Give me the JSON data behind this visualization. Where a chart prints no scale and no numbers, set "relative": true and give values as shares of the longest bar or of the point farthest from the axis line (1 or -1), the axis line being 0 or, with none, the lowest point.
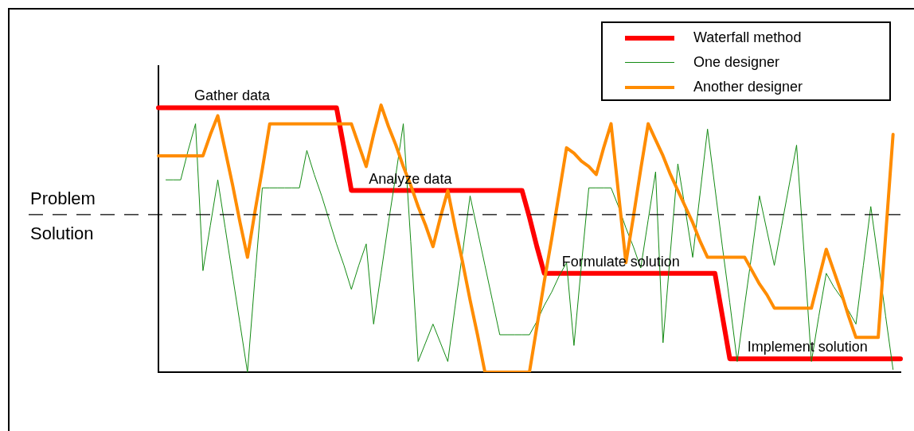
{
  "chart_data": {
    "type": "line",
    "relative": true,
    "tick_labels": false,
    "grid": false,
    "legend": "top right",
    "marker": "none",
    "line_style": "solid",
    "categories": [
      null,
      null,
      null,
      null,
      null,
      null,
      null,
      null,
      null,
      null,
      null,
      null,
      null,
      null,
      null,
      null,
      null,
      null,
      null,
      null,
      null,
      null,
      null,
      null,
      null,
      null,
      null,
      null,
      null,
      null,
      null,
      null,
      null,
      null,
      null,
      null,
      null,
      null,
      null,
      null,
      null,
      null,
      null,
      null,
      null,
      null,
      null,
      null,
      null,
      null,
      null,
      null,
      null,
      null,
      null,
      null,
      null,
      null,
      null,
      null,
      null,
      null,
      null,
      null,
      null,
      null,
      null,
      null,
      null,
      null,
      null,
      null,
      null,
      null,
      null,
      null,
      null,
      null,
      null,
      null,
      null,
      null,
      null,
      null,
      null,
      null,
      null,
      null,
      null,
      null,
      null,
      null,
      null,
      null,
      null,
      null,
      null,
      null,
      null,
      null,
      null
    ],
    "series": [
      {
        "name": "Waterfall method",
        "color": "#ff0000",
        "values": [
          0.99,
          0.99,
          0.99,
          0.99,
          0.99,
          0.99,
          0.99,
          0.99,
          0.99,
          0.99,
          0.99,
          0.99,
          0.99,
          0.99,
          0.99,
          0.99,
          0.99,
          0.99,
          0.99,
          0.99,
          0.99,
          0.99,
          0.99,
          0.99,
          0.99,
          0.84,
          0.68,
          0.68,
          0.68,
          0.68,
          0.68,
          0.68,
          0.68,
          0.68,
          0.68,
          0.68,
          0.68,
          0.68,
          0.68,
          0.68,
          0.68,
          0.68,
          0.68,
          0.68,
          0.68,
          0.68,
          0.68,
          0.68,
          0.68,
          0.68,
          0.58,
          0.47,
          0.37,
          0.37,
          0.37,
          0.37,
          0.37,
          0.37,
          0.37,
          0.37,
          0.37,
          0.37,
          0.37,
          0.37,
          0.37,
          0.37,
          0.37,
          0.37,
          0.37,
          0.37,
          0.37,
          0.37,
          0.37,
          0.37,
          0.37,
          0.37,
          0.21,
          0.05,
          0.05,
          0.05,
          0.05,
          0.05,
          0.05,
          0.05,
          0.05,
          0.05,
          0.05,
          0.05,
          0.05,
          0.05,
          0.05,
          0.05,
          0.05,
          0.05,
          0.05,
          0.05,
          0.05,
          0.05,
          0.05,
          0.05,
          0.05
        ]
      },
      {
        "name": "One designer",
        "color": "#138a13",
        "values": [
          null,
          0.72,
          0.72,
          0.72,
          0.83,
          0.93,
          0.38,
          0.55,
          0.72,
          0.54,
          0.36,
          0.18,
          0,
          0.35,
          0.69,
          0.69,
          0.69,
          0.69,
          0.69,
          0.69,
          0.83,
          0.74,
          0.66,
          0.57,
          0.48,
          0.4,
          0.31,
          0.4,
          0.48,
          0.18,
          0.37,
          0.56,
          0.74,
          0.93,
          0.49,
          0.04,
          0.11,
          0.18,
          0.11,
          0.04,
          0.25,
          0.45,
          0.66,
          0.53,
          0.4,
          0.27,
          0.14,
          0.14,
          0.14,
          0.14,
          0.14,
          0.19,
          0.25,
          0.3,
          0.36,
          0.41,
          0.1,
          0.4,
          0.69,
          0.69,
          0.69,
          0.69,
          0.62,
          0.54,
          0.47,
          0.39,
          0.57,
          0.75,
          0.11,
          0.45,
          0.78,
          0.61,
          0.43,
          0.67,
          0.91,
          0.69,
          0.47,
          0.26,
          0.04,
          0.25,
          0.45,
          0.66,
          0.53,
          0.4,
          0.55,
          0.7,
          0.85,
          0.45,
          0.04,
          0.21,
          0.37,
          0.32,
          0.28,
          0.23,
          0.18,
          0.4,
          0.62,
          0.42,
          0.21,
          0.01,
          null
        ]
      },
      {
        "name": "Another designer",
        "color": "#ff8c00",
        "values": [
          0.81,
          0.81,
          0.81,
          0.81,
          0.81,
          0.81,
          0.81,
          0.89,
          0.96,
          0.83,
          0.7,
          0.56,
          0.43,
          0.6,
          0.76,
          0.93,
          0.93,
          0.93,
          0.93,
          0.93,
          0.93,
          0.93,
          0.93,
          0.93,
          0.93,
          0.93,
          0.93,
          0.85,
          0.77,
          0.89,
          1,
          0.92,
          0.85,
          0.77,
          0.7,
          0.62,
          0.55,
          0.47,
          0.58,
          0.68,
          0.54,
          0.41,
          0.27,
          0.14,
          0,
          0,
          0,
          0,
          0,
          0,
          0,
          0.17,
          0.34,
          0.5,
          0.67,
          0.84,
          0.82,
          0.79,
          0.77,
          0.74,
          0.84,
          0.93,
          0.67,
          0.41,
          0.58,
          0.76,
          0.93,
          0.87,
          0.81,
          0.74,
          0.68,
          0.62,
          0.56,
          0.49,
          0.43,
          0.43,
          0.43,
          0.43,
          0.43,
          0.43,
          0.38,
          0.33,
          0.29,
          0.24,
          0.24,
          0.24,
          0.24,
          0.24,
          0.24,
          0.35,
          0.46,
          0.38,
          0.3,
          0.21,
          0.13,
          0.13,
          0.13,
          0.13,
          0.51,
          0.89,
          null
        ]
      }
    ],
    "ref_lines": [
      {
        "axis": "y",
        "value": 0.59,
        "color": "#000000",
        "line_style": "dashed"
      }
    ],
    "annotations": [
      "Problem",
      "Solution",
      "Gather data",
      "Analyze data",
      "Formulate solution",
      "Implement solution"
    ]
  }
}
